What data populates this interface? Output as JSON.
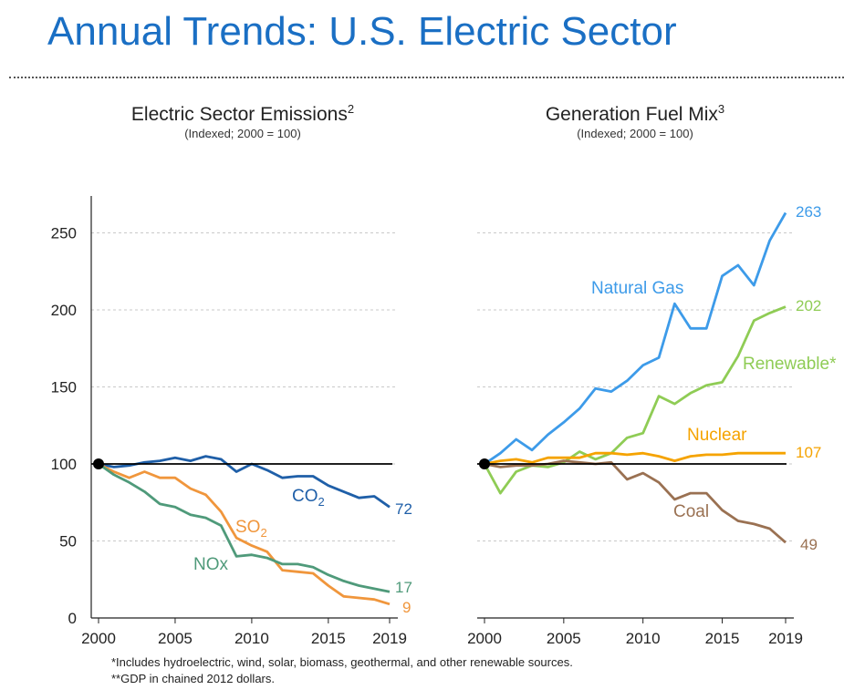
{
  "page_title": "Annual Trends: U.S. Electric Sector",
  "footnotes": [
    "*Includes hydroelectric, wind, solar, biomass, geothermal, and other renewable sources.",
    "**GDP in chained 2012 dollars."
  ],
  "chart_data": [
    {
      "type": "line",
      "title": "Electric Sector Emissions",
      "title_sup": "2",
      "subtitle": "(Indexed; 2000 = 100)",
      "x": [
        2000,
        2001,
        2002,
        2003,
        2004,
        2005,
        2006,
        2007,
        2008,
        2009,
        2010,
        2011,
        2012,
        2013,
        2014,
        2015,
        2016,
        2017,
        2018,
        2019
      ],
      "xticks": [
        "2000",
        "2005",
        "2010",
        "2015",
        "2019"
      ],
      "ylim": [
        0,
        275
      ],
      "yticks": [
        "0",
        "50",
        "100",
        "150",
        "200",
        "250"
      ],
      "grid": "horizontal dashed",
      "reference_line": 100,
      "series": [
        {
          "name": "CO",
          "name_sub": "2",
          "end_label": "72",
          "color": "#1f5fa8",
          "values": [
            100,
            98,
            99,
            101,
            102,
            104,
            102,
            105,
            103,
            95,
            100,
            96,
            91,
            92,
            92,
            86,
            82,
            78,
            79,
            72
          ]
        },
        {
          "name": "SO",
          "name_sub": "2",
          "end_label": "9",
          "color": "#f0963c",
          "values": [
            100,
            95,
            91,
            95,
            91,
            91,
            84,
            80,
            69,
            52,
            47,
            43,
            31,
            30,
            29,
            21,
            14,
            13,
            12,
            9
          ]
        },
        {
          "name": "NOx",
          "name_sub": "",
          "end_label": "17",
          "color": "#4f9a7a",
          "values": [
            100,
            93,
            88,
            82,
            74,
            72,
            67,
            65,
            60,
            40,
            41,
            39,
            35,
            35,
            33,
            28,
            24,
            21,
            19,
            17
          ]
        }
      ]
    },
    {
      "type": "line",
      "title": "Generation Fuel Mix",
      "title_sup": "3",
      "subtitle": "(Indexed; 2000 = 100)",
      "x": [
        2000,
        2001,
        2002,
        2003,
        2004,
        2005,
        2006,
        2007,
        2008,
        2009,
        2010,
        2011,
        2012,
        2013,
        2014,
        2015,
        2016,
        2017,
        2018,
        2019
      ],
      "xticks": [
        "2000",
        "2005",
        "2010",
        "2015",
        "2019"
      ],
      "ylim": [
        0,
        275
      ],
      "grid": "horizontal dashed",
      "reference_line": 100,
      "series": [
        {
          "name": "Natural Gas",
          "end_label": "263",
          "color": "#3d9be9",
          "values": [
            100,
            107,
            116,
            109,
            119,
            127,
            136,
            149,
            147,
            154,
            164,
            169,
            204,
            188,
            188,
            222,
            229,
            216,
            245,
            263
          ]
        },
        {
          "name": "Renewable*",
          "end_label": "202",
          "color": "#8fcc55",
          "values": [
            100,
            81,
            95,
            99,
            98,
            101,
            108,
            103,
            107,
            117,
            120,
            144,
            139,
            146,
            151,
            153,
            170,
            193,
            198,
            202
          ]
        },
        {
          "name": "Nuclear",
          "end_label": "107",
          "color": "#f5a300",
          "values": [
            100,
            102,
            103,
            101,
            104,
            104,
            104,
            107,
            107,
            106,
            107,
            105,
            102,
            105,
            106,
            106,
            107,
            107,
            107,
            107
          ]
        },
        {
          "name": "Coal",
          "end_label": "49",
          "color": "#9a7152",
          "values": [
            100,
            98,
            99,
            99,
            100,
            102,
            101,
            100,
            101,
            90,
            94,
            88,
            77,
            81,
            81,
            70,
            63,
            61,
            58,
            49
          ]
        }
      ]
    }
  ]
}
